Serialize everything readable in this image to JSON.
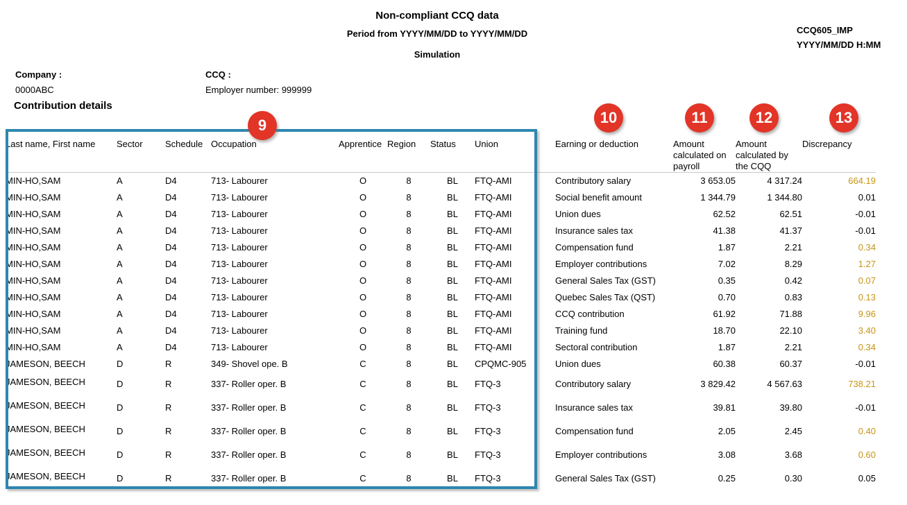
{
  "header": {
    "title": "Non-compliant CCQ data",
    "period": "Period from YYYY/MM/DD to YYYY/MM/DD",
    "subtitle": "Simulation",
    "report_code": "CCQ605_IMP",
    "report_datetime": "YYYY/MM/DD H:MM"
  },
  "info": {
    "company_label": "Company :",
    "company_value": "0000ABC",
    "ccq_label": "CCQ :",
    "employer_number": "Employer number: 999999"
  },
  "section_title": "Contribution details",
  "annotations": [
    {
      "number": "9"
    },
    {
      "number": "10"
    },
    {
      "number": "11"
    },
    {
      "number": "12"
    },
    {
      "number": "13"
    }
  ],
  "table": {
    "headers": {
      "name": "Last name, First name",
      "sector": "Sector",
      "schedule": "Schedule",
      "occupation": "Occupation",
      "apprentice": "Apprentice",
      "region": "Region",
      "status": "Status",
      "union": "Union",
      "earning": "Earning or deduction",
      "payroll": "Amount\ncalculated on\npayroll",
      "cqq": "Amount\ncalculated by\nthe CQQ",
      "discrepancy": "Discrepancy"
    },
    "rows": [
      {
        "name": "MIN-HO,SAM",
        "sector": "A",
        "schedule": "D4",
        "occupation": "713- Labourer",
        "apprentice": "O",
        "region": "8",
        "status": "BL",
        "union": "FTQ-AMI",
        "earning": "Contributory salary",
        "payroll": "3 653.05",
        "cqq": "4 317.24",
        "discrepancy": "664.19",
        "highlight": true,
        "tall": false
      },
      {
        "name": "MIN-HO,SAM",
        "sector": "A",
        "schedule": "D4",
        "occupation": "713- Labourer",
        "apprentice": "O",
        "region": "8",
        "status": "BL",
        "union": "FTQ-AMI",
        "earning": "Social benefit amount",
        "payroll": "1 344.79",
        "cqq": "1 344.80",
        "discrepancy": "0.01",
        "highlight": false,
        "tall": false
      },
      {
        "name": "MIN-HO,SAM",
        "sector": "A",
        "schedule": "D4",
        "occupation": "713- Labourer",
        "apprentice": "O",
        "region": "8",
        "status": "BL",
        "union": "FTQ-AMI",
        "earning": "Union dues",
        "payroll": "62.52",
        "cqq": "62.51",
        "discrepancy": "-0.01",
        "highlight": false,
        "tall": false
      },
      {
        "name": "MIN-HO,SAM",
        "sector": "A",
        "schedule": "D4",
        "occupation": "713- Labourer",
        "apprentice": "O",
        "region": "8",
        "status": "BL",
        "union": "FTQ-AMI",
        "earning": "Insurance sales tax",
        "payroll": "41.38",
        "cqq": "41.37",
        "discrepancy": "-0.01",
        "highlight": false,
        "tall": false
      },
      {
        "name": "MIN-HO,SAM",
        "sector": "A",
        "schedule": "D4",
        "occupation": "713- Labourer",
        "apprentice": "O",
        "region": "8",
        "status": "BL",
        "union": "FTQ-AMI",
        "earning": "Compensation fund",
        "payroll": "1.87",
        "cqq": "2.21",
        "discrepancy": "0.34",
        "highlight": true,
        "tall": false
      },
      {
        "name": "MIN-HO,SAM",
        "sector": "A",
        "schedule": "D4",
        "occupation": "713- Labourer",
        "apprentice": "O",
        "region": "8",
        "status": "BL",
        "union": "FTQ-AMI",
        "earning": "Employer contributions",
        "payroll": "7.02",
        "cqq": "8.29",
        "discrepancy": "1.27",
        "highlight": true,
        "tall": false
      },
      {
        "name": "MIN-HO,SAM",
        "sector": "A",
        "schedule": "D4",
        "occupation": "713- Labourer",
        "apprentice": "O",
        "region": "8",
        "status": "BL",
        "union": "FTQ-AMI",
        "earning": "General Sales Tax (GST)",
        "payroll": "0.35",
        "cqq": "0.42",
        "discrepancy": "0.07",
        "highlight": true,
        "tall": false
      },
      {
        "name": "MIN-HO,SAM",
        "sector": "A",
        "schedule": "D4",
        "occupation": "713- Labourer",
        "apprentice": "O",
        "region": "8",
        "status": "BL",
        "union": "FTQ-AMI",
        "earning": "Quebec Sales Tax (QST)",
        "payroll": "0.70",
        "cqq": "0.83",
        "discrepancy": "0.13",
        "highlight": true,
        "tall": false
      },
      {
        "name": "MIN-HO,SAM",
        "sector": "A",
        "schedule": "D4",
        "occupation": "713- Labourer",
        "apprentice": "O",
        "region": "8",
        "status": "BL",
        "union": "FTQ-AMI",
        "earning": "CCQ contribution",
        "payroll": "61.92",
        "cqq": "71.88",
        "discrepancy": "9.96",
        "highlight": true,
        "tall": false
      },
      {
        "name": "MIN-HO,SAM",
        "sector": "A",
        "schedule": "D4",
        "occupation": "713- Labourer",
        "apprentice": "O",
        "region": "8",
        "status": "BL",
        "union": "FTQ-AMI",
        "earning": "Training fund",
        "payroll": "18.70",
        "cqq": "22.10",
        "discrepancy": "3.40",
        "highlight": true,
        "tall": false
      },
      {
        "name": "MIN-HO,SAM",
        "sector": "A",
        "schedule": "D4",
        "occupation": "713- Labourer",
        "apprentice": "O",
        "region": "8",
        "status": "BL",
        "union": "FTQ-AMI",
        "earning": "Sectoral contribution",
        "payroll": "1.87",
        "cqq": "2.21",
        "discrepancy": "0.34",
        "highlight": true,
        "tall": false
      },
      {
        "name": "JAMESON, BEECH",
        "sector": "D",
        "schedule": "R",
        "occupation": "349- Shovel ope. B",
        "apprentice": "C",
        "region": "8",
        "status": "BL",
        "union": "CPQMC-905",
        "earning": "Union dues",
        "payroll": "60.38",
        "cqq": "60.37",
        "discrepancy": "-0.01",
        "highlight": false,
        "tall": false
      },
      {
        "name": "JAMESON, BEECH",
        "sector": "D",
        "schedule": "R",
        "occupation": "337- Roller oper. B",
        "apprentice": "C",
        "region": "8",
        "status": "BL",
        "union": "FTQ-3",
        "earning": "Contributory salary",
        "payroll": "3 829.42",
        "cqq": "4 567.63",
        "discrepancy": "738.21",
        "highlight": true,
        "tall": true
      },
      {
        "name": "JAMESON, BEECH",
        "sector": "D",
        "schedule": "R",
        "occupation": "337- Roller oper. B",
        "apprentice": "C",
        "region": "8",
        "status": "BL",
        "union": "FTQ-3",
        "earning": "Insurance sales tax",
        "payroll": "39.81",
        "cqq": "39.80",
        "discrepancy": "-0.01",
        "highlight": false,
        "tall": true
      },
      {
        "name": "JAMESON, BEECH",
        "sector": "D",
        "schedule": "R",
        "occupation": "337- Roller oper. B",
        "apprentice": "C",
        "region": "8",
        "status": "BL",
        "union": "FTQ-3",
        "earning": "Compensation fund",
        "payroll": "2.05",
        "cqq": "2.45",
        "discrepancy": "0.40",
        "highlight": true,
        "tall": true
      },
      {
        "name": "JAMESON, BEECH",
        "sector": "D",
        "schedule": "R",
        "occupation": "337- Roller oper. B",
        "apprentice": "C",
        "region": "8",
        "status": "BL",
        "union": "FTQ-3",
        "earning": "Employer contributions",
        "payroll": "3.08",
        "cqq": "3.68",
        "discrepancy": "0.60",
        "highlight": true,
        "tall": true
      },
      {
        "name": "JAMESON, BEECH",
        "sector": "D",
        "schedule": "R",
        "occupation": "337- Roller oper. B",
        "apprentice": "C",
        "region": "8",
        "status": "BL",
        "union": "FTQ-3",
        "earning": "General Sales Tax (GST)",
        "payroll": "0.25",
        "cqq": "0.30",
        "discrepancy": "0.05",
        "highlight": false,
        "tall": true
      }
    ]
  },
  "colors": {
    "badge_red": "#E23427",
    "discrepancy_gold": "#C79415",
    "frame_blue": "#2E87AE"
  }
}
